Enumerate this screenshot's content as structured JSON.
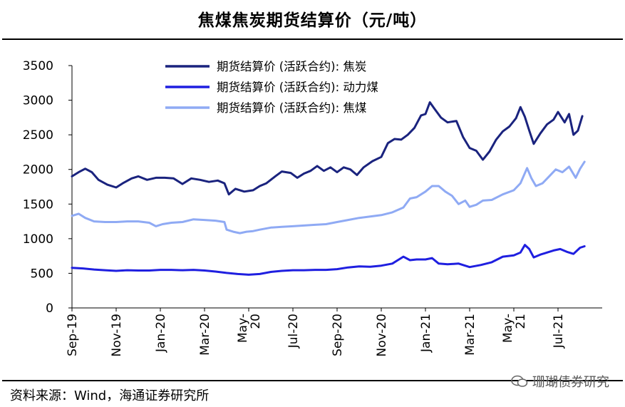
{
  "header": {
    "title": "焦煤焦炭期货结算价（元/吨）"
  },
  "footer": {
    "source": "资料来源：Wind，海通证券研究所",
    "watermark": "珊瑚债券研究"
  },
  "chart_data": {
    "type": "line",
    "title": "焦煤焦炭期货结算价（元/吨）",
    "xlabel": "",
    "ylabel": "",
    "ylim": [
      0,
      3500
    ],
    "yticks": [
      0,
      500,
      1000,
      1500,
      2000,
      2500,
      3000,
      3500
    ],
    "xlim": [
      0,
      24
    ],
    "xticks": [
      {
        "pos": 0,
        "label": [
          "Sep-19"
        ]
      },
      {
        "pos": 2,
        "label": [
          "Nov-19"
        ]
      },
      {
        "pos": 4,
        "label": [
          "Jan-20"
        ]
      },
      {
        "pos": 6,
        "label": [
          "Mar-20"
        ]
      },
      {
        "pos": 8,
        "label": [
          "May-",
          "20"
        ]
      },
      {
        "pos": 10,
        "label": [
          "Jul-20"
        ]
      },
      {
        "pos": 12,
        "label": [
          "Sep-20"
        ]
      },
      {
        "pos": 14,
        "label": [
          "Nov-20"
        ]
      },
      {
        "pos": 16,
        "label": [
          "Jan-21"
        ]
      },
      {
        "pos": 18,
        "label": [
          "Mar-21"
        ]
      },
      {
        "pos": 20,
        "label": [
          "May-",
          "21"
        ]
      },
      {
        "pos": 22,
        "label": [
          "Jul-21"
        ]
      }
    ],
    "legend_position": "top-center",
    "series": [
      {
        "name": "期货结算价 (活跃合约): 焦炭",
        "color": "#1a237e",
        "points": [
          [
            0,
            1900
          ],
          [
            0.3,
            1960
          ],
          [
            0.6,
            2010
          ],
          [
            0.9,
            1960
          ],
          [
            1.2,
            1850
          ],
          [
            1.6,
            1780
          ],
          [
            2.0,
            1740
          ],
          [
            2.3,
            1800
          ],
          [
            2.7,
            1870
          ],
          [
            3.0,
            1900
          ],
          [
            3.4,
            1850
          ],
          [
            3.8,
            1880
          ],
          [
            4.2,
            1880
          ],
          [
            4.6,
            1870
          ],
          [
            5.0,
            1790
          ],
          [
            5.4,
            1870
          ],
          [
            5.8,
            1850
          ],
          [
            6.2,
            1820
          ],
          [
            6.6,
            1840
          ],
          [
            6.9,
            1800
          ],
          [
            7.1,
            1640
          ],
          [
            7.4,
            1720
          ],
          [
            7.8,
            1680
          ],
          [
            8.2,
            1700
          ],
          [
            8.5,
            1760
          ],
          [
            8.8,
            1800
          ],
          [
            9.2,
            1900
          ],
          [
            9.5,
            1970
          ],
          [
            9.9,
            1950
          ],
          [
            10.2,
            1880
          ],
          [
            10.5,
            1940
          ],
          [
            10.8,
            1980
          ],
          [
            11.1,
            2050
          ],
          [
            11.4,
            1980
          ],
          [
            11.7,
            2030
          ],
          [
            12.0,
            1960
          ],
          [
            12.3,
            2030
          ],
          [
            12.6,
            2000
          ],
          [
            12.9,
            1920
          ],
          [
            13.2,
            2030
          ],
          [
            13.6,
            2120
          ],
          [
            14.0,
            2180
          ],
          [
            14.3,
            2380
          ],
          [
            14.6,
            2440
          ],
          [
            14.9,
            2430
          ],
          [
            15.2,
            2500
          ],
          [
            15.5,
            2600
          ],
          [
            15.8,
            2780
          ],
          [
            16.0,
            2800
          ],
          [
            16.2,
            2970
          ],
          [
            16.4,
            2880
          ],
          [
            16.7,
            2750
          ],
          [
            17.0,
            2680
          ],
          [
            17.4,
            2700
          ],
          [
            17.7,
            2470
          ],
          [
            18.0,
            2310
          ],
          [
            18.3,
            2270
          ],
          [
            18.6,
            2140
          ],
          [
            18.9,
            2260
          ],
          [
            19.2,
            2430
          ],
          [
            19.5,
            2550
          ],
          [
            19.8,
            2620
          ],
          [
            20.1,
            2740
          ],
          [
            20.3,
            2900
          ],
          [
            20.5,
            2760
          ],
          [
            20.7,
            2560
          ],
          [
            20.9,
            2370
          ],
          [
            21.2,
            2520
          ],
          [
            21.5,
            2650
          ],
          [
            21.8,
            2720
          ],
          [
            22.0,
            2830
          ],
          [
            22.3,
            2680
          ],
          [
            22.5,
            2800
          ],
          [
            22.7,
            2500
          ],
          [
            22.9,
            2560
          ],
          [
            23.1,
            2770
          ]
        ]
      },
      {
        "name": "期货结算价 (活跃合约): 动力煤",
        "color": "#1f1fe0",
        "points": [
          [
            0,
            580
          ],
          [
            0.5,
            570
          ],
          [
            1.0,
            555
          ],
          [
            1.5,
            545
          ],
          [
            2.0,
            535
          ],
          [
            2.5,
            545
          ],
          [
            3.0,
            540
          ],
          [
            3.5,
            540
          ],
          [
            4.0,
            550
          ],
          [
            4.5,
            550
          ],
          [
            5.0,
            545
          ],
          [
            5.5,
            550
          ],
          [
            6.0,
            540
          ],
          [
            6.5,
            525
          ],
          [
            7.0,
            505
          ],
          [
            7.5,
            490
          ],
          [
            8.0,
            480
          ],
          [
            8.5,
            490
          ],
          [
            9.0,
            520
          ],
          [
            9.5,
            535
          ],
          [
            10.0,
            545
          ],
          [
            10.5,
            545
          ],
          [
            11.0,
            550
          ],
          [
            11.5,
            550
          ],
          [
            12.0,
            560
          ],
          [
            12.5,
            585
          ],
          [
            13.0,
            600
          ],
          [
            13.5,
            595
          ],
          [
            14.0,
            610
          ],
          [
            14.5,
            640
          ],
          [
            14.8,
            700
          ],
          [
            15.0,
            740
          ],
          [
            15.3,
            690
          ],
          [
            15.6,
            700
          ],
          [
            16.0,
            700
          ],
          [
            16.3,
            720
          ],
          [
            16.6,
            640
          ],
          [
            17.0,
            630
          ],
          [
            17.5,
            640
          ],
          [
            18.0,
            590
          ],
          [
            18.5,
            620
          ],
          [
            19.0,
            660
          ],
          [
            19.5,
            740
          ],
          [
            20.0,
            760
          ],
          [
            20.3,
            800
          ],
          [
            20.5,
            910
          ],
          [
            20.7,
            850
          ],
          [
            20.9,
            730
          ],
          [
            21.2,
            770
          ],
          [
            21.5,
            800
          ],
          [
            21.8,
            830
          ],
          [
            22.1,
            850
          ],
          [
            22.4,
            810
          ],
          [
            22.7,
            780
          ],
          [
            23.0,
            870
          ],
          [
            23.2,
            890
          ]
        ]
      },
      {
        "name": "期货结算价 (活跃合约): 焦煤",
        "color": "#8faaf4",
        "points": [
          [
            0,
            1330
          ],
          [
            0.3,
            1360
          ],
          [
            0.6,
            1300
          ],
          [
            1.0,
            1250
          ],
          [
            1.5,
            1240
          ],
          [
            2.0,
            1240
          ],
          [
            2.5,
            1250
          ],
          [
            3.0,
            1250
          ],
          [
            3.5,
            1230
          ],
          [
            3.8,
            1180
          ],
          [
            4.1,
            1210
          ],
          [
            4.5,
            1230
          ],
          [
            5.0,
            1240
          ],
          [
            5.5,
            1280
          ],
          [
            6.0,
            1270
          ],
          [
            6.5,
            1260
          ],
          [
            6.9,
            1240
          ],
          [
            7.0,
            1130
          ],
          [
            7.3,
            1100
          ],
          [
            7.6,
            1080
          ],
          [
            7.9,
            1100
          ],
          [
            8.2,
            1110
          ],
          [
            8.5,
            1130
          ],
          [
            9.0,
            1160
          ],
          [
            9.5,
            1170
          ],
          [
            10.0,
            1180
          ],
          [
            10.5,
            1190
          ],
          [
            11.0,
            1200
          ],
          [
            11.5,
            1210
          ],
          [
            12.0,
            1240
          ],
          [
            12.5,
            1270
          ],
          [
            13.0,
            1300
          ],
          [
            13.5,
            1320
          ],
          [
            14.0,
            1340
          ],
          [
            14.5,
            1380
          ],
          [
            15.0,
            1450
          ],
          [
            15.3,
            1580
          ],
          [
            15.6,
            1600
          ],
          [
            16.0,
            1680
          ],
          [
            16.3,
            1760
          ],
          [
            16.6,
            1760
          ],
          [
            16.9,
            1680
          ],
          [
            17.2,
            1620
          ],
          [
            17.5,
            1500
          ],
          [
            17.8,
            1550
          ],
          [
            18.0,
            1460
          ],
          [
            18.3,
            1490
          ],
          [
            18.6,
            1550
          ],
          [
            19.0,
            1560
          ],
          [
            19.5,
            1640
          ],
          [
            20.0,
            1700
          ],
          [
            20.3,
            1800
          ],
          [
            20.6,
            2020
          ],
          [
            20.8,
            1870
          ],
          [
            21.0,
            1760
          ],
          [
            21.3,
            1800
          ],
          [
            21.6,
            1900
          ],
          [
            21.9,
            2000
          ],
          [
            22.2,
            1960
          ],
          [
            22.5,
            2040
          ],
          [
            22.8,
            1880
          ],
          [
            23.0,
            2010
          ],
          [
            23.2,
            2110
          ]
        ]
      }
    ]
  }
}
